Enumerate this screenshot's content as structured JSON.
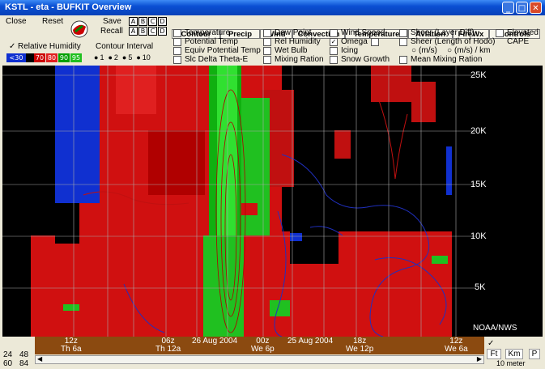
{
  "window": {
    "title": "KSTL - eta - BUFKIT Overview"
  },
  "controls": {
    "close": "Close",
    "reset": "Reset",
    "save": "Save",
    "recall": "Recall",
    "slots": [
      "A",
      "B",
      "C",
      "D"
    ]
  },
  "overlay_label": "Relative Humidity",
  "contour_interval": {
    "label": "Contour Interval",
    "options": [
      "1",
      "2",
      "5",
      "10"
    ],
    "selected": "10"
  },
  "legend": [
    {
      "label": "<30",
      "color": "#1030d0"
    },
    {
      "label": "70",
      "color": "#cc0000"
    },
    {
      "label": "80",
      "color": "#e02020"
    },
    {
      "label": "90",
      "color": "#00a000"
    },
    {
      "label": "95",
      "color": "#20c020"
    }
  ],
  "tabs": [
    "Contour",
    "Precip",
    "Wind",
    "Convection",
    "Temperature",
    "Aviation",
    "FireWx",
    "Controls"
  ],
  "checkboxes": {
    "col1": [
      "Temperature",
      "Potential Temp",
      "Equiv Potential Temp",
      "Slc Delta Theta-E"
    ],
    "col2": [
      "Dew Point",
      "Rel Humidity",
      "Wet Bulb",
      "Mixing Ration"
    ],
    "col3": [
      "Wind Speed",
      "Omega",
      "Icing",
      "Snow Growth"
    ],
    "col4": [
      "Sheer (Layer Diff)",
      "Sheer (Length of Hodo)",
      "Mean Mixing Ration"
    ],
    "col4_units": [
      "(m/s)",
      "(m/s) / km"
    ],
    "col5": [
      "Elevated",
      "CAPE"
    ]
  },
  "plot": {
    "y_ticks": [
      "25K",
      "20K",
      "15K",
      "10K",
      "5K"
    ],
    "watermark": "NOAA/NWS"
  },
  "time_axis": [
    {
      "top": "12z",
      "bottom": "Th 6a"
    },
    {
      "top": "06z",
      "bottom": "Th 12a"
    },
    {
      "top": "00z",
      "bottom": "We 6p"
    },
    {
      "top": "18z",
      "bottom": "We 12p"
    },
    {
      "top": "12z",
      "bottom": "We 6a"
    }
  ],
  "dates": [
    "26 Aug 2004",
    "25 Aug 2004"
  ],
  "bottom_left": {
    "row1": [
      "24",
      "48"
    ],
    "row2": [
      "60",
      "84"
    ]
  },
  "units": {
    "ft": "Ft",
    "km": "Km",
    "p": "P",
    "interval": "10 meter"
  }
}
